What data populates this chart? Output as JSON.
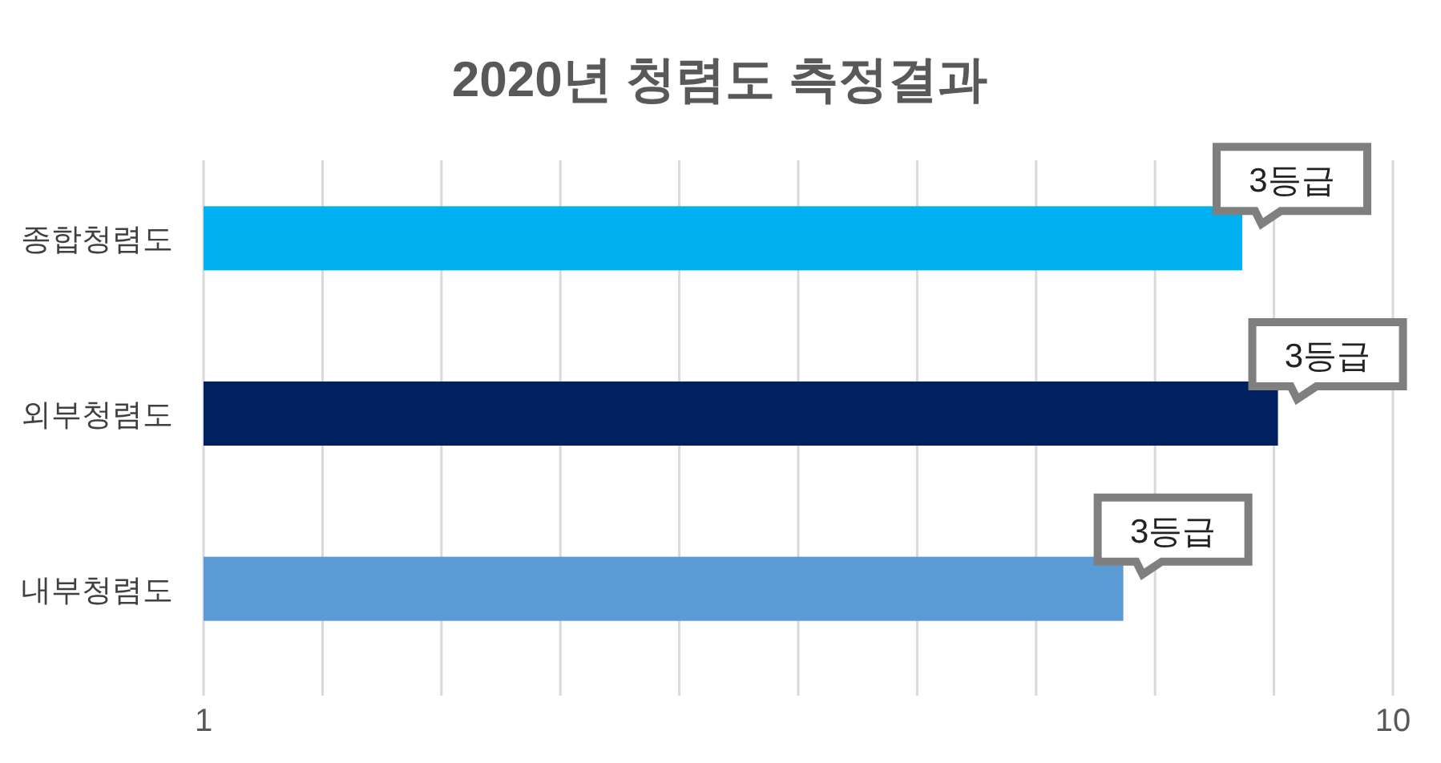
{
  "chart_data": {
    "type": "bar",
    "orientation": "horizontal",
    "title": "2020년 청렴도 측정결과",
    "categories": [
      "종합청렴도",
      "외부청렴도",
      "내부청렴도"
    ],
    "values": [
      8.86,
      9.13,
      7.96
    ],
    "colors": [
      "#00b0f0",
      "#002060",
      "#5b9bd5"
    ],
    "annotations": [
      {
        "text": "3등급",
        "x": 8.86,
        "y": "종합청렴도"
      },
      {
        "text": "3등급",
        "x": 9.13,
        "y": "외부청렴도"
      },
      {
        "text": "3등급",
        "x": 7.96,
        "y": "내부청렴도"
      }
    ],
    "xlim": [
      1,
      10
    ],
    "xticks": [
      1,
      {
        "value": 1.9,
        "label": null
      },
      {
        "value": 2.8,
        "label": null
      },
      {
        "value": 3.7,
        "label": null
      },
      {
        "value": 4.6,
        "label": null
      },
      {
        "value": 5.5,
        "label": null
      },
      {
        "value": 6.4,
        "label": null
      },
      {
        "value": 7.3,
        "label": null
      },
      {
        "value": 8.2,
        "label": null
      },
      {
        "value": 9.1,
        "label": null
      },
      10
    ],
    "grid": "x"
  }
}
